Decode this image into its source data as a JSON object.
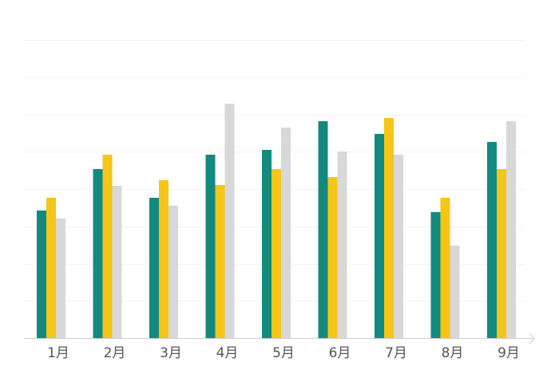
{
  "chart_data": {
    "type": "bar",
    "categories": [
      "1月",
      "2月",
      "3月",
      "4月",
      "5月",
      "6月",
      "7月",
      "8月",
      "9月"
    ],
    "series": [
      {
        "values": [
          160,
          212,
          176,
          230,
          236,
          272,
          256,
          158,
          246
        ],
        "color": "#128a80"
      },
      {
        "values": [
          176,
          230,
          198,
          192,
          212,
          202,
          276,
          176,
          212
        ],
        "color": "#f5c518"
      },
      {
        "values": [
          150,
          191,
          166,
          294,
          264,
          234,
          230,
          116,
          272
        ],
        "color": "#d8d8d8"
      }
    ],
    "ylim": [
      0,
      374
    ],
    "grid": true,
    "legend": "none"
  }
}
